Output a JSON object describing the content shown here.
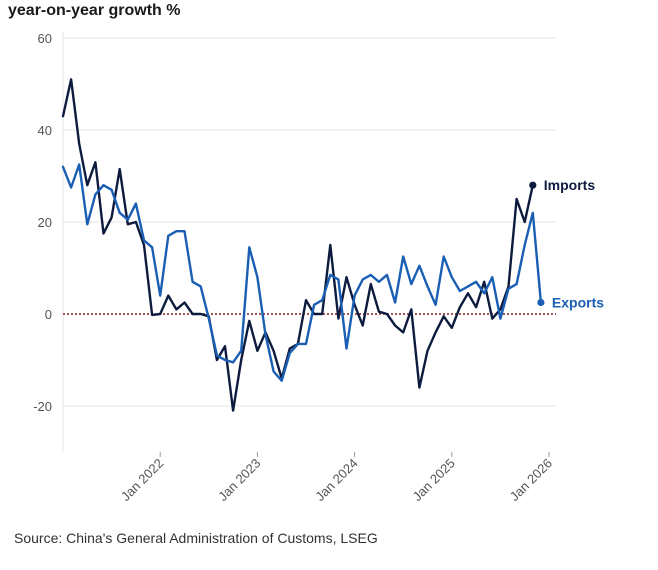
{
  "chart_data": {
    "type": "line",
    "title": "",
    "ylabel": "year-on-year growth %",
    "xlabel": "",
    "ylim": [
      -30,
      60
    ],
    "yticks": [
      60,
      40,
      20,
      0,
      -20
    ],
    "ytick_labels": [
      "60",
      "40",
      "20",
      "0",
      "-20"
    ],
    "x_start": "2021-01",
    "x_tick_labels": [
      "Jan 2022",
      "Jan 2023",
      "Jan 2024",
      "Jan 2025",
      "Jan 2026"
    ],
    "x_tick_index": [
      12,
      24,
      36,
      48,
      60
    ],
    "zero_line": true,
    "source": "Source: China's General Administration of Customs, LSEG",
    "series": [
      {
        "name": "Imports",
        "color": "#0d1b3e",
        "values": [
          43,
          51,
          37,
          28,
          33,
          17.5,
          21,
          31.5,
          19.5,
          20,
          15,
          -0.2,
          0,
          4,
          1,
          2.5,
          0,
          0,
          -0.5,
          -10,
          -7,
          -21,
          -10,
          -1.5,
          -8,
          -4,
          -8,
          -14,
          -7.5,
          -6.5,
          3,
          0,
          0,
          15,
          -1,
          8,
          2,
          -2.5,
          6.5,
          0.5,
          0,
          -2.5,
          -4,
          1,
          -16,
          -8,
          -4,
          -0.5,
          -3,
          1.5,
          4.5,
          1.5,
          7,
          -1,
          1,
          6,
          25,
          20,
          28
        ]
      },
      {
        "name": "Exports",
        "color": "#1a5fb4",
        "values": [
          32,
          27.5,
          32.5,
          19.5,
          26,
          28,
          27,
          22,
          20.5,
          24,
          16,
          14.5,
          4,
          17,
          18,
          18,
          7,
          6,
          -1,
          -9,
          -10,
          -10.5,
          -8,
          14.5,
          8,
          -4.5,
          -12.5,
          -14.5,
          -8.5,
          -6.5,
          -6.5,
          2,
          3,
          8.5,
          7.5,
          -7.5,
          4,
          7.5,
          8.5,
          7,
          8.5,
          2.5,
          12.5,
          6.5,
          10.5,
          6,
          2,
          12.5,
          8,
          5,
          6,
          7,
          4.5,
          8,
          -1,
          5.5,
          6.5,
          15,
          22,
          2.5
        ]
      }
    ]
  }
}
